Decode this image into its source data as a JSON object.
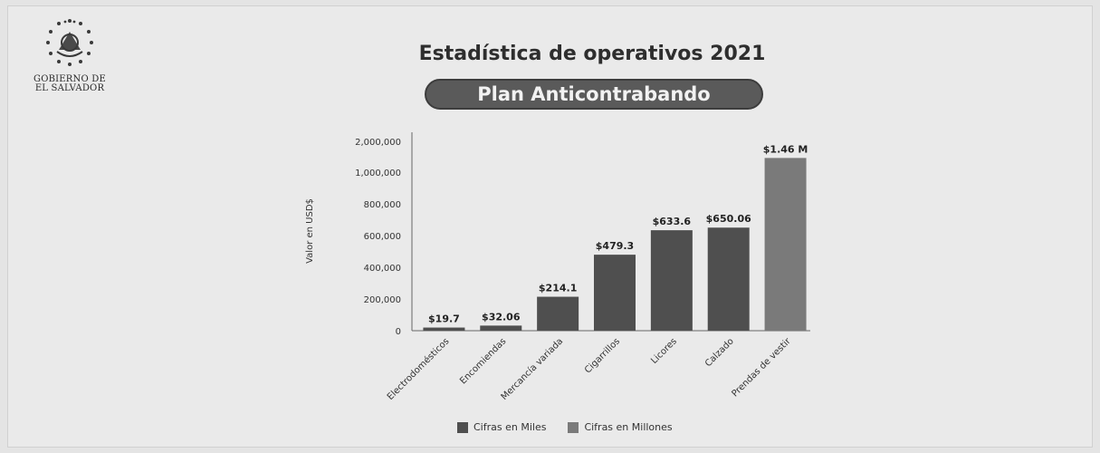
{
  "logo": {
    "line1": "GOBIERNO DE",
    "line2": "EL SALVADOR"
  },
  "colors": {
    "miles": "#4f4f4f",
    "millones": "#7a7a7a",
    "pill": "#5a5a5a"
  },
  "chart_data": {
    "type": "bar",
    "title": "Estadística de operativos 2021",
    "subtitle": "Plan Anticontrabando",
    "ylabel": "Valor en USD$",
    "xlabel": "",
    "ylim": [
      0,
      2000000
    ],
    "yticks": [
      0,
      200000,
      400000,
      600000,
      800000,
      1000000,
      2000000
    ],
    "ytick_labels": [
      "0",
      "200,000",
      "400,000",
      "600,000",
      "800,000",
      "1,000,000",
      "2,000,000"
    ],
    "categories": [
      "Electrodomésticos",
      "Encomiendas",
      "Mercancía variada",
      "Cigarrillos",
      "Licores",
      "Calzado",
      "Prendas de vestir"
    ],
    "series": [
      {
        "name": "Cifras en Miles",
        "values": [
          19700,
          32060,
          214100,
          479300,
          633600,
          650060,
          null
        ]
      },
      {
        "name": "Cifras en Millones",
        "values": [
          null,
          null,
          null,
          null,
          null,
          null,
          1460000
        ]
      }
    ],
    "data_labels": [
      "$19.7",
      "$32.06",
      "$214.1",
      "$479.3",
      "$633.6",
      "$650.06",
      "$1.46 M"
    ],
    "legend_position": "bottom",
    "grid": false
  }
}
